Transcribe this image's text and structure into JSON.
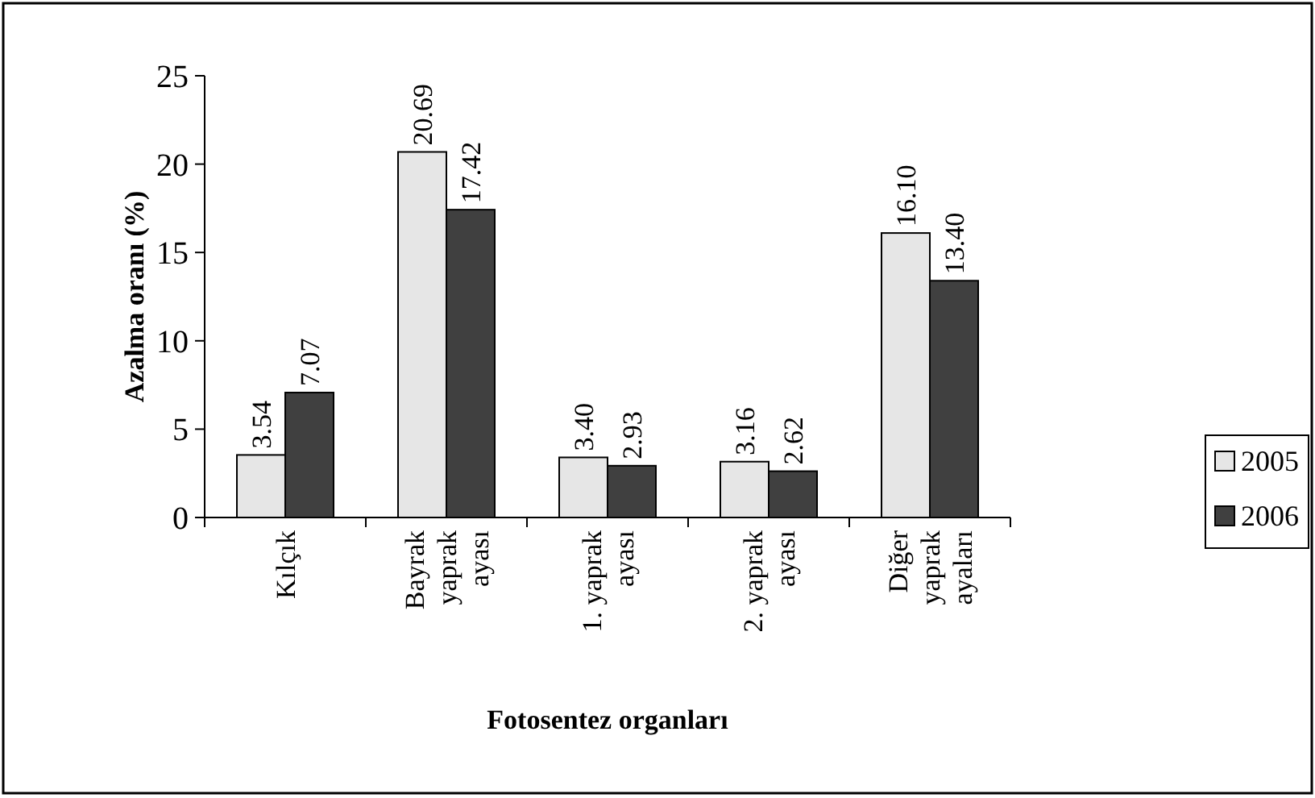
{
  "chart_data": {
    "type": "bar",
    "xlabel": "Fotosentez organları",
    "ylabel": "Azalma oranı (%)",
    "categories": [
      "Kılçık",
      "Bayrak yaprak ayası",
      "1. yaprak ayası",
      "2. yaprak ayası",
      "Diğer yaprak ayaları"
    ],
    "series": [
      {
        "name": "2005",
        "color": "#e6e6e6",
        "values": [
          3.54,
          20.69,
          3.4,
          3.16,
          16.1
        ],
        "value_labels": [
          "3.54",
          "20.69",
          "3.40",
          "3.16",
          "16.10"
        ]
      },
      {
        "name": "2006",
        "color": "#404040",
        "values": [
          7.07,
          17.42,
          2.93,
          2.62,
          13.4
        ],
        "value_labels": [
          "7.07",
          "17.42",
          "2.93",
          "2.62",
          "13.40"
        ]
      }
    ],
    "ylim": [
      0,
      25
    ],
    "yticks": [
      0,
      5,
      10,
      15,
      20,
      25
    ],
    "grid": false,
    "legend": "right"
  }
}
